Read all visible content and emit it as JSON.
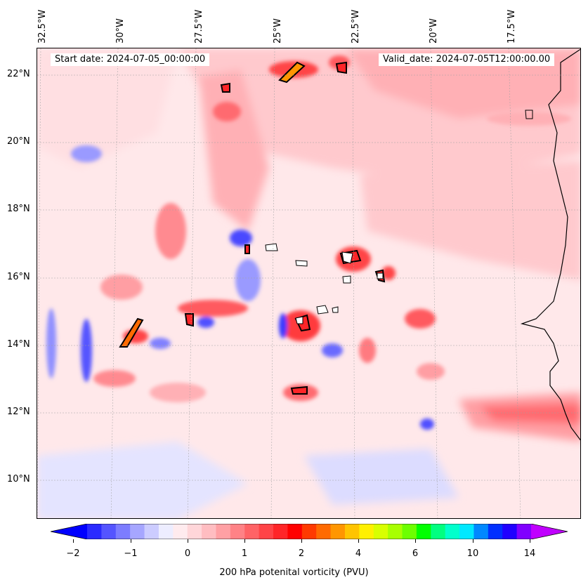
{
  "header": {
    "start_date": "Start date: 2024-07-05_00:00:00",
    "valid_date": "Valid_date: 2024-07-05T12:00:00.00"
  },
  "axes": {
    "lon_labels": [
      "32.5°W",
      "30°W",
      "27.5°W",
      "25°W",
      "22.5°W",
      "20°W",
      "17.5°W"
    ],
    "lat_labels": [
      "22°N",
      "20°N",
      "18°N",
      "16°N",
      "14°N",
      "12°N",
      "10°N"
    ]
  },
  "colorbar": {
    "label": "200 hPa potenital vorticity (PVU)",
    "tick_labels": [
      "−2",
      "−1",
      "0",
      "1",
      "2",
      "4",
      "6",
      "10",
      "14"
    ],
    "tick_values": [
      -2,
      -1,
      0,
      1,
      2,
      4,
      6,
      10,
      14
    ],
    "colors": [
      "#0000ff",
      "#2a2aff",
      "#5454ff",
      "#7c7cff",
      "#a6a6ff",
      "#ccccff",
      "#ededff",
      "#ffebee",
      "#ffd6d9",
      "#ffbdc1",
      "#ffa0a4",
      "#ff8286",
      "#ff6366",
      "#ff4447",
      "#ff2528",
      "#ff0000",
      "#ff3a00",
      "#ff6a00",
      "#ff9600",
      "#ffc400",
      "#fff000",
      "#d8ff00",
      "#a8ff00",
      "#6cff00",
      "#00ff00",
      "#00ff80",
      "#00ffcc",
      "#00e8ff",
      "#0088ff",
      "#0030ff",
      "#2000ff",
      "#8000ff",
      "#c000ff"
    ]
  },
  "map": {
    "background": "#ffe6e8",
    "coastline_color": "#000000"
  }
}
